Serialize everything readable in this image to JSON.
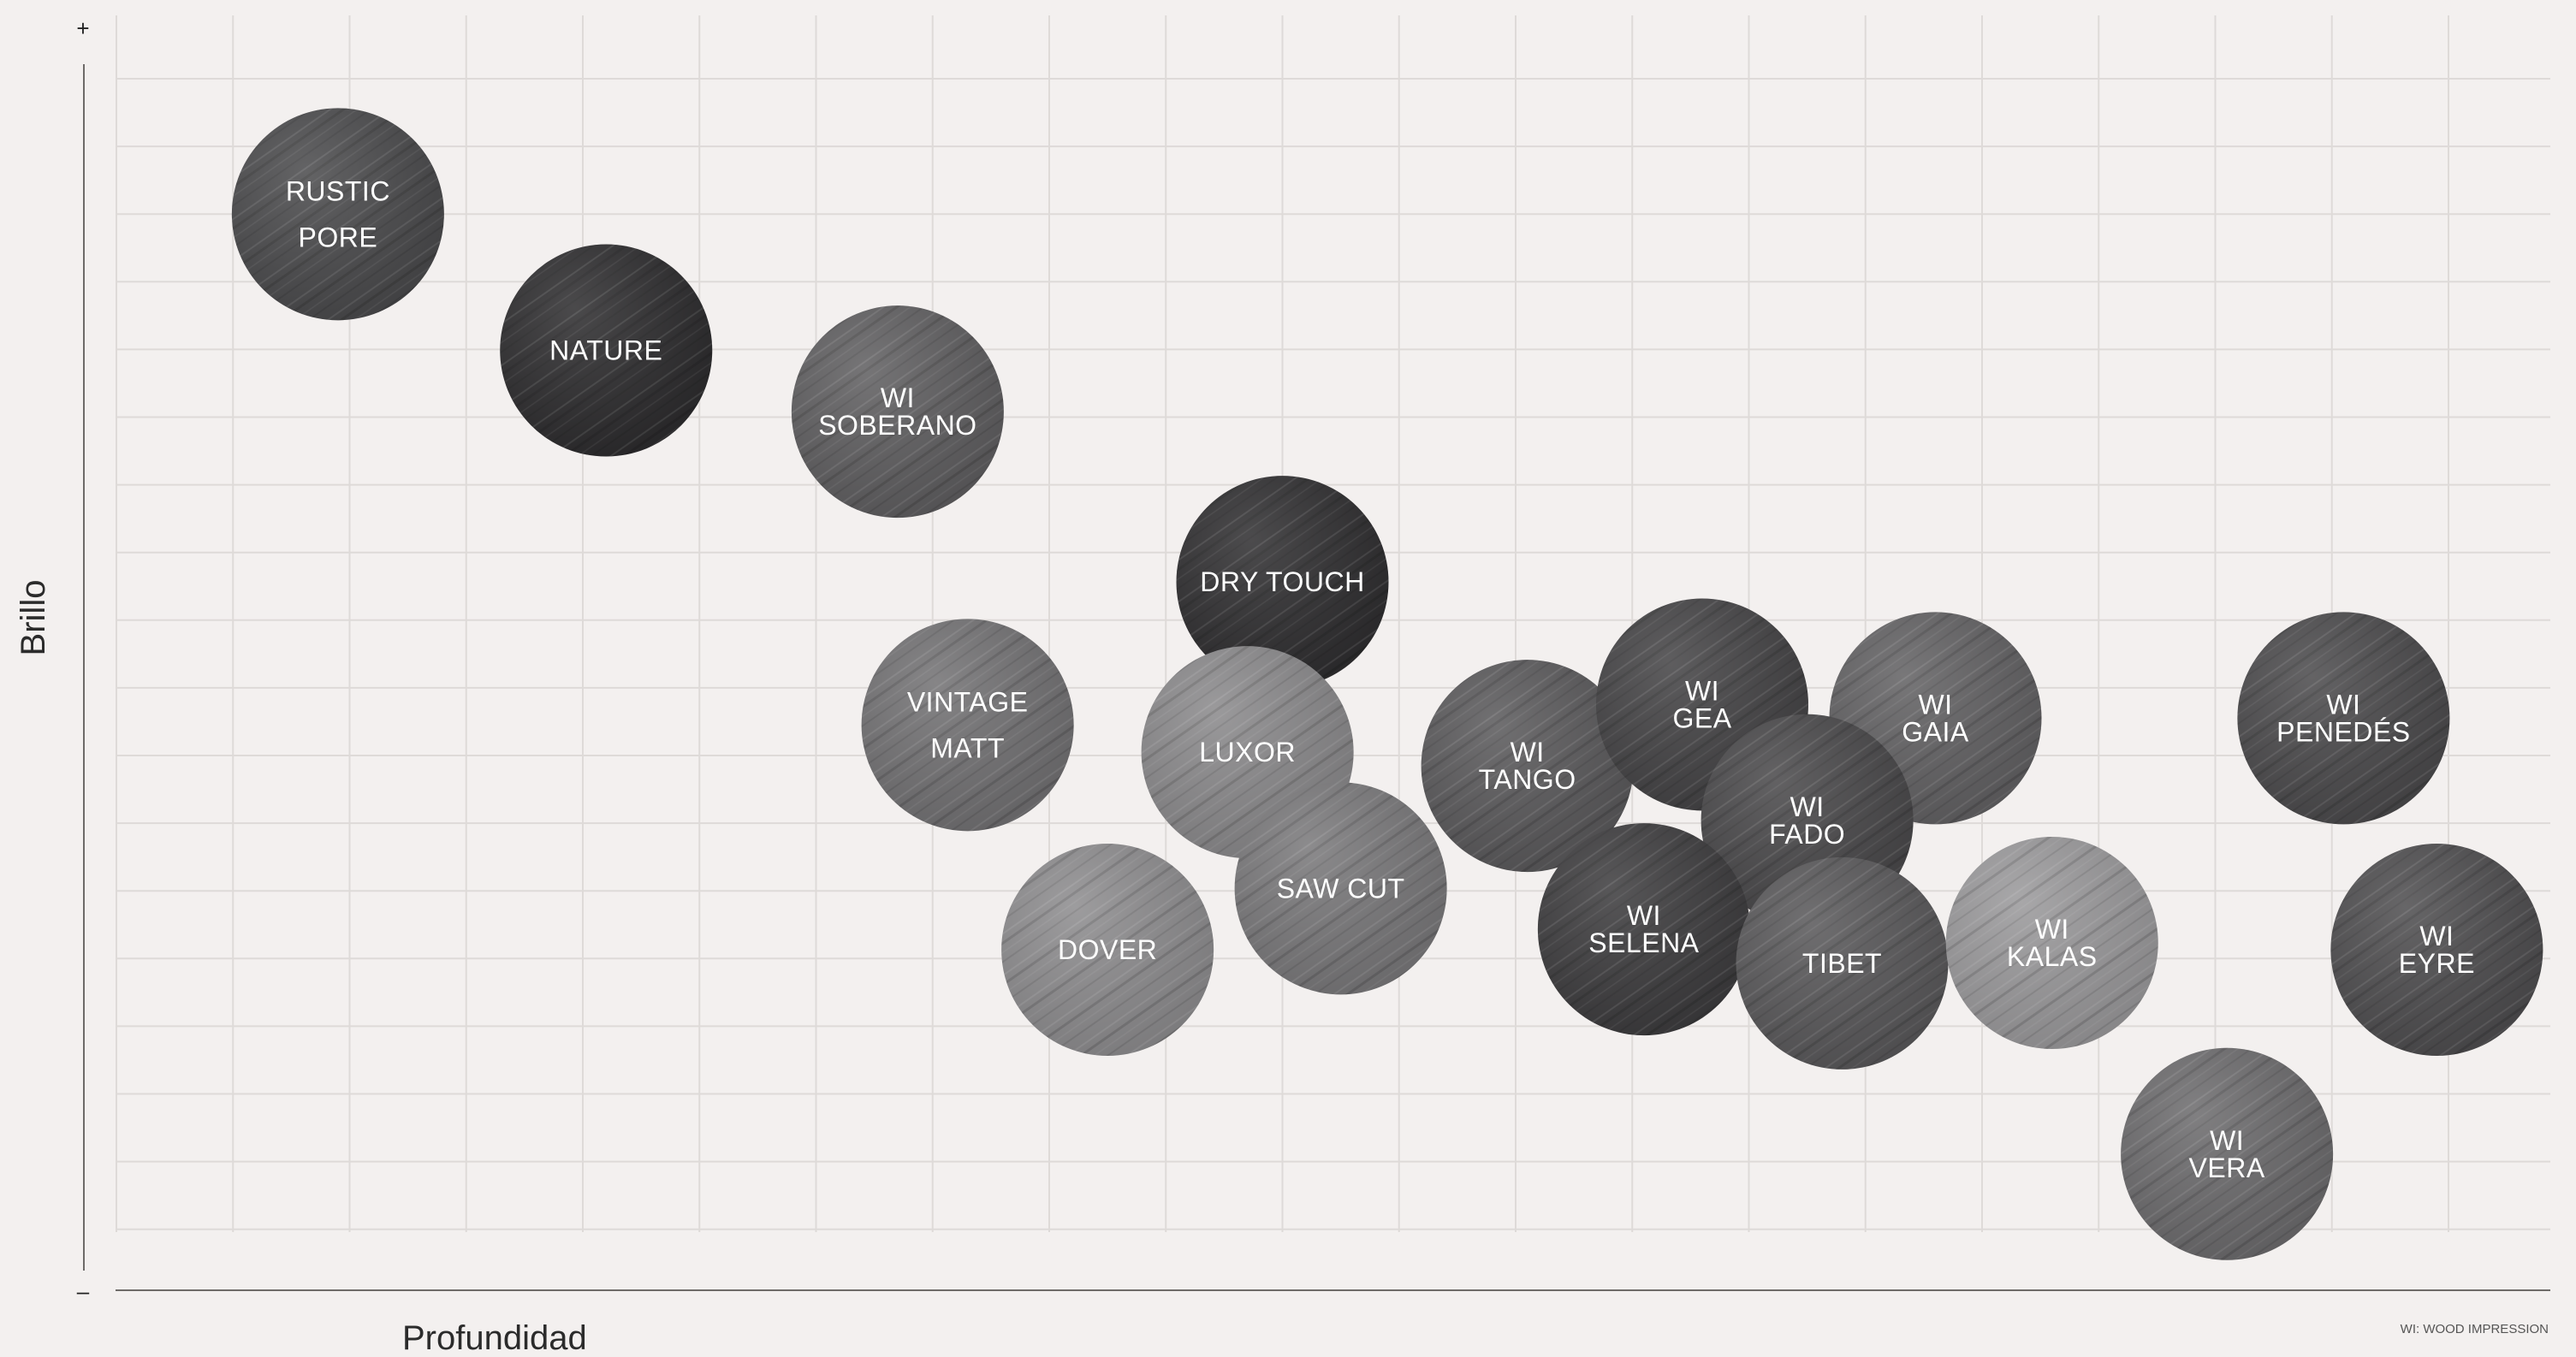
{
  "chart_data": {
    "type": "scatter",
    "xlabel": "Profundidad",
    "ylabel": "Brillo",
    "y_axis_top_mark": "+",
    "y_axis_bottom_mark": "–",
    "footnote": "WI: WOOD IMPRESSION",
    "grid": true,
    "xlim": [
      0,
      20
    ],
    "ylim": [
      0,
      19
    ],
    "points": [
      {
        "lines": [
          "RUSTIC",
          "PORE"
        ],
        "x": 1.9,
        "y": 15.8,
        "color": "#4a4a4c"
      },
      {
        "lines": [
          "NATURE"
        ],
        "x": 4.2,
        "y": 13.8,
        "color": "#2d2c2e"
      },
      {
        "lines": [
          "WI",
          "SOBERANO"
        ],
        "x": 6.7,
        "y": 12.9,
        "color": "#5f5e60"
      },
      {
        "lines": [
          "DRY TOUCH"
        ],
        "x": 10.0,
        "y": 10.4,
        "color": "#2f2e30"
      },
      {
        "lines": [
          "VINTAGE",
          "MATT"
        ],
        "x": 7.3,
        "y": 8.3,
        "color": "#727173"
      },
      {
        "lines": [
          "LUXOR"
        ],
        "x": 9.7,
        "y": 7.9,
        "color": "#8a898b"
      },
      {
        "lines": [
          "SAW CUT"
        ],
        "x": 10.5,
        "y": 5.9,
        "color": "#79787a"
      },
      {
        "lines": [
          "DOVER"
        ],
        "x": 8.5,
        "y": 5.0,
        "color": "#8d8c8e"
      },
      {
        "lines": [
          "WI",
          "TANGO"
        ],
        "x": 12.1,
        "y": 7.7,
        "color": "#5a595b"
      },
      {
        "lines": [
          "WI",
          "GEA"
        ],
        "x": 13.6,
        "y": 8.6,
        "color": "#444345"
      },
      {
        "lines": [
          "WI",
          "GAIA"
        ],
        "x": 15.6,
        "y": 8.4,
        "color": "#626163"
      },
      {
        "lines": [
          "WI",
          "FADO"
        ],
        "x": 14.5,
        "y": 6.9,
        "color": "#49484a"
      },
      {
        "lines": [
          "WI",
          "SELENA"
        ],
        "x": 13.1,
        "y": 5.3,
        "color": "#3d3c3e"
      },
      {
        "lines": [
          "TIBET"
        ],
        "x": 14.8,
        "y": 4.8,
        "color": "#59585a"
      },
      {
        "lines": [
          "WI",
          "KALAS"
        ],
        "x": 16.6,
        "y": 5.1,
        "color": "#9a999b"
      },
      {
        "lines": [
          "WI",
          "PENEDÉS"
        ],
        "x": 19.1,
        "y": 8.4,
        "color": "#4b4a4c"
      },
      {
        "lines": [
          "WI",
          "EYRE"
        ],
        "x": 19.9,
        "y": 5.0,
        "color": "#4e4d4f"
      },
      {
        "lines": [
          "WI",
          "VERA"
        ],
        "x": 18.1,
        "y": 2.0,
        "color": "#6c6b6d"
      }
    ]
  }
}
